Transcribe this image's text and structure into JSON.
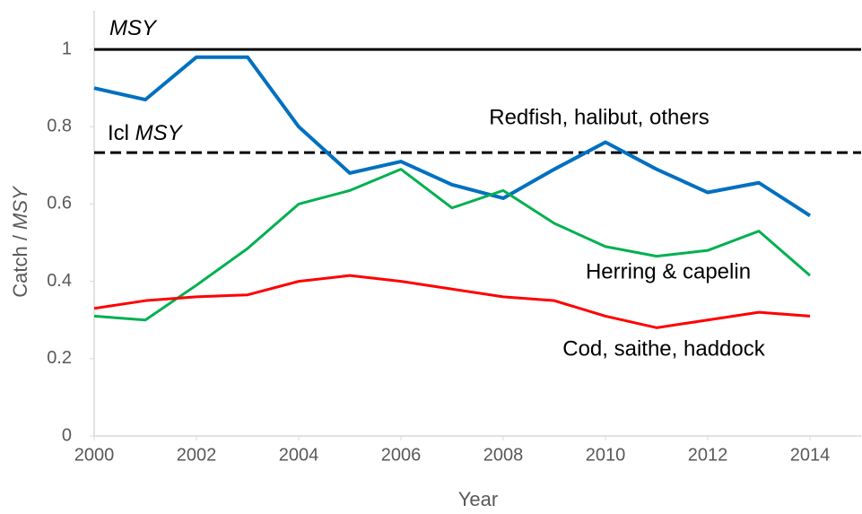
{
  "chart_data": {
    "type": "line",
    "x_label": "Year",
    "y_label": [
      "Catch /",
      "MSY"
    ],
    "x": [
      2000,
      2001,
      2002,
      2003,
      2004,
      2005,
      2006,
      2007,
      2008,
      2009,
      2010,
      2011,
      2012,
      2013,
      2014
    ],
    "series": [
      {
        "name": "Redfish, halibut, others",
        "color": "#0070c0",
        "values": [
          0.9,
          0.87,
          0.98,
          0.98,
          0.8,
          0.68,
          0.71,
          0.65,
          0.615,
          0.69,
          0.76,
          0.69,
          0.63,
          0.655,
          0.57
        ]
      },
      {
        "name": "Herring & capelin",
        "color": "#00b050",
        "values": [
          0.31,
          0.3,
          0.39,
          0.485,
          0.6,
          0.635,
          0.69,
          0.59,
          0.635,
          0.55,
          0.49,
          0.465,
          0.48,
          0.53,
          0.415
        ]
      },
      {
        "name": "Cod, saithe, haddock",
        "color": "#ff0000",
        "values": [
          0.33,
          0.35,
          0.36,
          0.365,
          0.4,
          0.415,
          0.4,
          0.38,
          0.36,
          0.35,
          0.31,
          0.28,
          0.3,
          0.32,
          0.31
        ]
      }
    ],
    "reference_lines": [
      {
        "label": [
          "MSY"
        ],
        "value": 1,
        "style": "solid",
        "color": "#000000"
      },
      {
        "label": [
          "Icl",
          "MSY"
        ],
        "value": 0.733,
        "style": "dashed",
        "color": "#000000"
      }
    ],
    "xlim": [
      2000,
      2015
    ],
    "xticks": [
      2000,
      2002,
      2004,
      2006,
      2008,
      2010,
      2012,
      2014
    ],
    "ylim": [
      0,
      1.1
    ],
    "yticks": [
      0,
      0.2,
      0.4,
      0.6,
      0.8,
      1
    ],
    "grid": false
  }
}
